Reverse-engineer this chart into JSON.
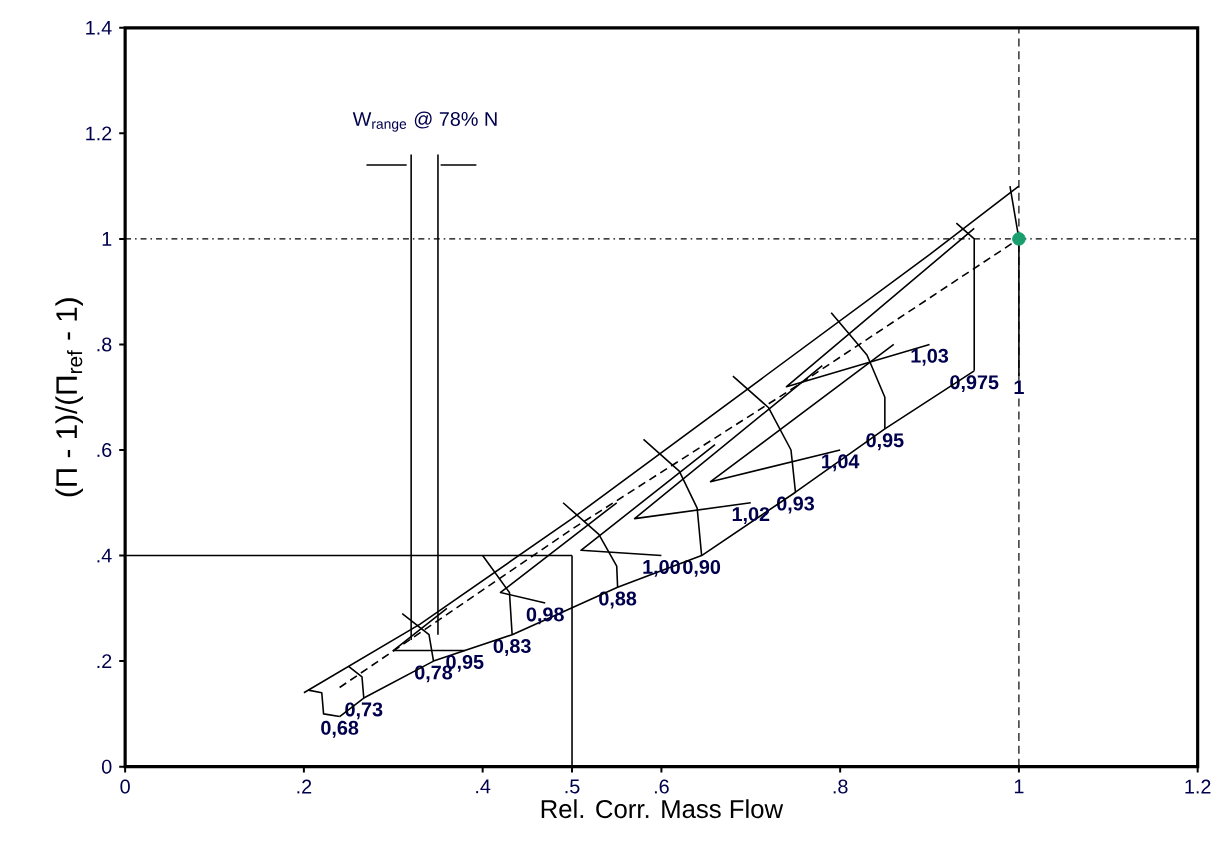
{
  "chart_data": {
    "type": "line",
    "xlabel": "Rel. Corr. Mass Flow",
    "ylabel": "(Π - 1)/(Π$_{ref}$ - 1)",
    "xlim": [
      0,
      1.2
    ],
    "ylim": [
      0,
      1.4
    ],
    "xticks": [
      0,
      {
        "value": 0.2,
        "label": ".2"
      },
      {
        "value": 0.4,
        "label": ".4"
      },
      {
        "value": 0.5,
        "label": ".5"
      },
      {
        "value": 0.6,
        "label": ".6"
      },
      {
        "value": 0.8,
        "label": ".8"
      },
      1,
      1.2
    ],
    "yticks": [
      0,
      {
        "value": 0.2,
        "label": ".2"
      },
      {
        "value": 0.4,
        "label": ".4"
      },
      {
        "value": 0.6,
        "label": ".6"
      },
      {
        "value": 0.8,
        "label": ".8"
      },
      1,
      1.2,
      1.4
    ],
    "ref_lines": [
      {
        "axis": "x",
        "value": 1,
        "line_style": "dashed"
      },
      {
        "axis": "y",
        "value": 1,
        "line_style": "dotted"
      }
    ],
    "annotations": [
      "W$_{range}$ @ 78% N"
    ],
    "series": [
      {
        "color": "#000000",
        "x": [
          0.2,
          0.33,
          0.5,
          0.7,
          0.9,
          1.0
        ],
        "values": [
          0.14,
          0.27,
          0.47,
          0.72,
          0.97,
          1.1
        ]
      },
      {
        "color": "#000000",
        "line_style": "dashed",
        "x": [
          0.24,
          0.5,
          0.75,
          1.0
        ],
        "values": [
          0.15,
          0.45,
          0.72,
          1.0
        ]
      },
      {
        "name": "0,68",
        "color": "#000000",
        "x": [
          0.205,
          0.22,
          0.222,
          0.24
        ],
        "values": [
          0.145,
          0.14,
          0.1,
          0.095
        ]
      },
      {
        "name": "0,73",
        "color": "#000000",
        "x": [
          0.25,
          0.265,
          0.267
        ],
        "values": [
          0.19,
          0.17,
          0.13
        ]
      },
      {
        "name": "0,78",
        "color": "#000000",
        "x": [
          0.31,
          0.34,
          0.345
        ],
        "values": [
          0.29,
          0.25,
          0.2
        ]
      },
      {
        "name": "0,83",
        "color": "#000000",
        "x": [
          0.4,
          0.43,
          0.433
        ],
        "values": [
          0.4,
          0.33,
          0.25
        ]
      },
      {
        "name": "0,88",
        "color": "#000000",
        "x": [
          0.49,
          0.53,
          0.55,
          0.551
        ],
        "values": [
          0.5,
          0.44,
          0.38,
          0.34
        ]
      },
      {
        "name": "0,90",
        "color": "#000000",
        "x": [
          0.58,
          0.62,
          0.64,
          0.645
        ],
        "values": [
          0.62,
          0.56,
          0.49,
          0.4
        ]
      },
      {
        "name": "0,93",
        "color": "#000000",
        "x": [
          0.68,
          0.72,
          0.745,
          0.75
        ],
        "values": [
          0.74,
          0.68,
          0.6,
          0.52
        ]
      },
      {
        "name": "0,95",
        "color": "#000000",
        "x": [
          0.79,
          0.83,
          0.85,
          0.85
        ],
        "values": [
          0.86,
          0.78,
          0.7,
          0.64
        ]
      },
      {
        "name": "0,975",
        "color": "#000000",
        "x": [
          0.93,
          0.95,
          0.95
        ],
        "values": [
          1.03,
          1.0,
          0.75
        ]
      },
      {
        "name": "1",
        "color": "#000000",
        "x": [
          0.99,
          1.0,
          1.0
        ],
        "values": [
          1.1,
          1.0,
          0.74
        ]
      },
      {
        "color": "#000000",
        "x": [
          0.24,
          0.267,
          0.345,
          0.433,
          0.551,
          0.645,
          0.75,
          0.85,
          0.95
        ],
        "values": [
          0.095,
          0.13,
          0.2,
          0.25,
          0.34,
          0.4,
          0.52,
          0.64,
          0.75
        ]
      },
      {
        "name": "0,95",
        "color": "#000000",
        "x": [
          0.36,
          0.3,
          0.38
        ],
        "values": [
          0.3,
          0.22,
          0.22
        ]
      },
      {
        "name": "0,98",
        "color": "#000000",
        "x": [
          0.55,
          0.42,
          0.47
        ],
        "values": [
          0.5,
          0.33,
          0.31
        ]
      },
      {
        "name": "1,00",
        "color": "#000000",
        "x": [
          0.66,
          0.51,
          0.6
        ],
        "values": [
          0.61,
          0.41,
          0.4
        ]
      },
      {
        "name": "1,02",
        "color": "#000000",
        "x": [
          0.78,
          0.57,
          0.7
        ],
        "values": [
          0.76,
          0.47,
          0.5
        ]
      },
      {
        "name": "1,04",
        "color": "#000000",
        "x": [
          0.86,
          0.655,
          0.8
        ],
        "values": [
          0.8,
          0.54,
          0.6
        ]
      },
      {
        "name": "1,03",
        "color": "#000000",
        "x": [
          0.95,
          0.74,
          0.9
        ],
        "values": [
          1.02,
          0.72,
          0.8
        ]
      },
      {
        "color": "#000000",
        "x": [
          0.32,
          0.32
        ],
        "values": [
          1.16,
          0.24
        ]
      },
      {
        "color": "#000000",
        "x": [
          0.35,
          0.35
        ],
        "values": [
          1.16,
          0.25
        ]
      },
      {
        "color": "#000000",
        "x": [
          0.27,
          0.315
        ],
        "values": [
          1.14,
          1.14
        ]
      },
      {
        "color": "#000000",
        "x": [
          0.393,
          0.353
        ],
        "values": [
          1.14,
          1.14
        ]
      },
      {
        "color": "#000000",
        "x": [
          0.5,
          0.5
        ],
        "values": [
          0,
          0.4
        ]
      },
      {
        "color": "#000000",
        "x": [
          0.5,
          0
        ],
        "values": [
          0.4,
          0.4
        ]
      },
      {
        "type": "scatter",
        "color": "#1a9e6e",
        "x": [
          1.0
        ],
        "values": [
          1.0
        ]
      }
    ]
  }
}
